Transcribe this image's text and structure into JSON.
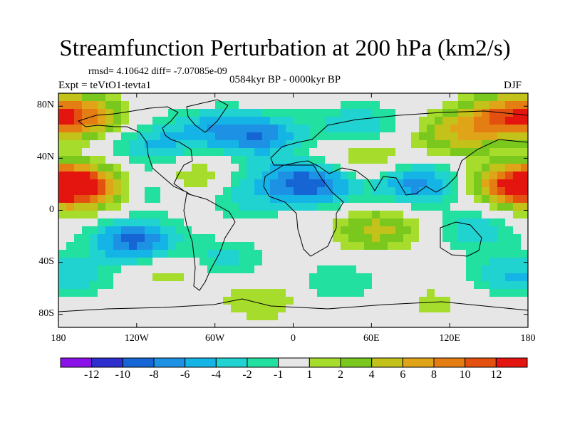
{
  "chart_data": {
    "type": "heatmap",
    "title": "Streamfunction Perturbation at 200 hPa (km2/s)",
    "subtitle_left": "Expt = teVtO1-tevta1",
    "stats": "rmsd= 4.10642 diff= -7.07085e-09",
    "subtitle_center": "0584kyr BP - 0000kyr BP",
    "season": "DJF",
    "xlim": [
      -180,
      180
    ],
    "ylim": [
      -90,
      90
    ],
    "x_ticks": [
      "180",
      "120W",
      "60W",
      "0",
      "60E",
      "120E",
      "180"
    ],
    "y_ticks": [
      "80N",
      "40N",
      "0",
      "40S",
      "80S"
    ],
    "colorbar_labels": [
      "-12",
      "-10",
      "-8",
      "-6",
      "-4",
      "-2",
      "-1",
      "1",
      "2",
      "4",
      "6",
      "8",
      "10",
      "12"
    ],
    "colorbar_colors": [
      "#8a12e8",
      "#2f2fd0",
      "#1565d4",
      "#1d92e4",
      "#15b4e6",
      "#20d2d0",
      "#22e0a0",
      "#e6e6e6",
      "#a6dc2c",
      "#7ac81e",
      "#c2c21a",
      "#e0a418",
      "#e47e12",
      "#e45010",
      "#e4140f"
    ],
    "anomalies": [
      {
        "lon": -165,
        "lat": 72,
        "amp": 10
      },
      {
        "lon": -160,
        "lat": 18,
        "amp": 13
      },
      {
        "lon": -165,
        "lat": -52,
        "amp": -3
      },
      {
        "lon": -122,
        "lat": -24,
        "amp": -10
      },
      {
        "lon": -110,
        "lat": 18,
        "amp": -4
      },
      {
        "lon": -110,
        "lat": 50,
        "amp": -5
      },
      {
        "lon": -95,
        "lat": -45,
        "amp": 3
      },
      {
        "lon": -80,
        "lat": 25,
        "amp": 4
      },
      {
        "lon": -65,
        "lat": 62,
        "amp": -5
      },
      {
        "lon": -55,
        "lat": -38,
        "amp": -4
      },
      {
        "lon": -40,
        "lat": 8,
        "amp": -3
      },
      {
        "lon": -25,
        "lat": 58,
        "amp": -8
      },
      {
        "lon": -25,
        "lat": -70,
        "amp": 3
      },
      {
        "lon": -20,
        "lat": 25,
        "amp": -3
      },
      {
        "lon": 15,
        "lat": 20,
        "amp": -10
      },
      {
        "lon": 35,
        "lat": -55,
        "amp": -3
      },
      {
        "lon": 50,
        "lat": 65,
        "amp": -5
      },
      {
        "lon": 55,
        "lat": 40,
        "amp": 4
      },
      {
        "lon": 65,
        "lat": -15,
        "amp": 6
      },
      {
        "lon": 95,
        "lat": 20,
        "amp": -8
      },
      {
        "lon": 125,
        "lat": 58,
        "amp": 6
      },
      {
        "lon": 140,
        "lat": -15,
        "amp": -4
      },
      {
        "lon": 160,
        "lat": 72,
        "amp": 9
      },
      {
        "lon": 170,
        "lat": 20,
        "amp": 12
      },
      {
        "lon": 160,
        "lat": -50,
        "amp": -4
      },
      {
        "lon": 110,
        "lat": -70,
        "amp": 2
      }
    ]
  }
}
